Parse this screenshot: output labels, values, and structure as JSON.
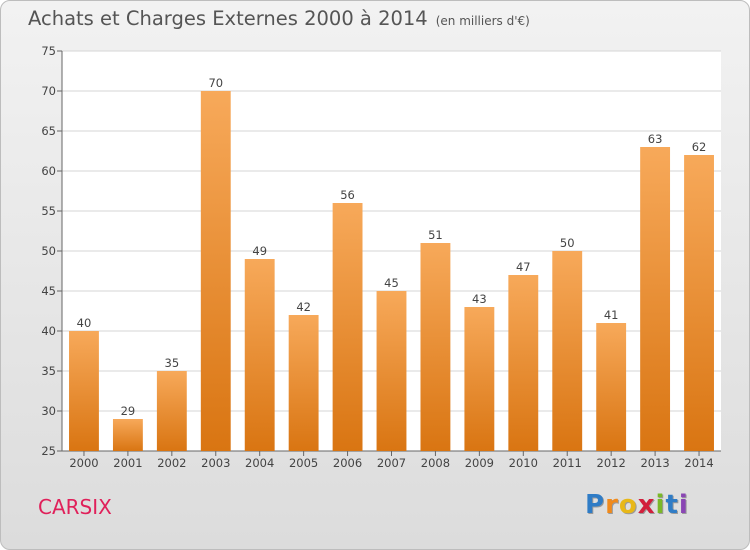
{
  "title": "Achats et Charges Externes 2000 à 2014",
  "subtitle": "(en milliers d'€)",
  "commune": "CARSIX",
  "logo": {
    "letters": [
      "P",
      "r",
      "o",
      "x",
      "i",
      "t",
      "i"
    ],
    "colors": [
      "#2f7cc6",
      "#f08a1c",
      "#e8b817",
      "#d21f3c",
      "#7ab828",
      "#2f7cc6",
      "#8a46b4"
    ]
  },
  "colors": {
    "bar": "#ef8e30",
    "bar_light": "#f7a95a",
    "bar_dark": "#d97512",
    "town": "#e0205a"
  },
  "chart_data": {
    "type": "bar",
    "categories": [
      "2000",
      "2001",
      "2002",
      "2003",
      "2004",
      "2005",
      "2006",
      "2007",
      "2008",
      "2009",
      "2010",
      "2011",
      "2012",
      "2013",
      "2014"
    ],
    "values": [
      40,
      29,
      35,
      70,
      49,
      42,
      56,
      45,
      51,
      43,
      47,
      50,
      41,
      63,
      62
    ],
    "ylim": [
      25,
      75
    ],
    "yticks": [
      25,
      30,
      35,
      40,
      45,
      50,
      55,
      60,
      65,
      70,
      75
    ],
    "grid": true,
    "xlabel": "",
    "ylabel": ""
  }
}
